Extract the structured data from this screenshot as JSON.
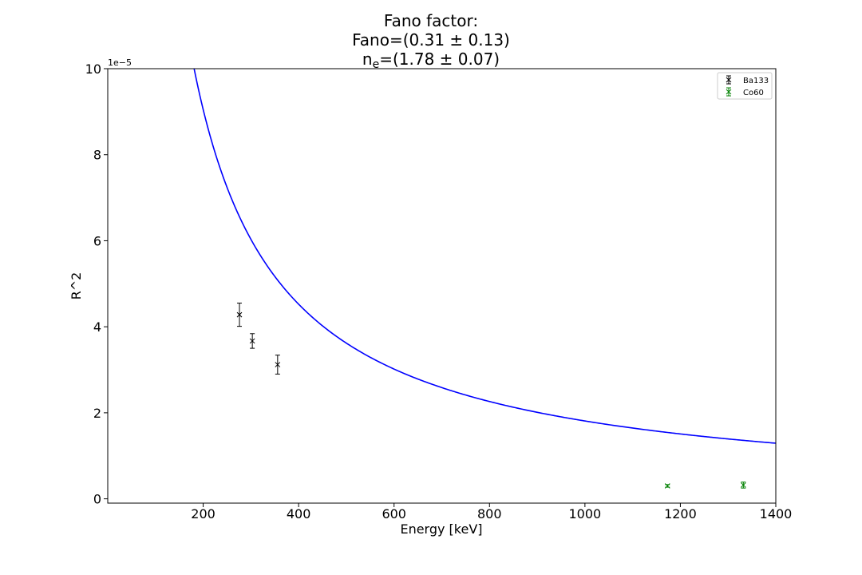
{
  "chart_data": {
    "type": "scatter",
    "title_lines": [
      "Fano factor:",
      "Fano=(0.31 ± 0.13)",
      "=(1.78 ± 0.07)"
    ],
    "title_ne_base": "n",
    "title_ne_sub": "e",
    "xlabel": "Energy [keV]",
    "ylabel": "R^2",
    "y_offset_label": "1e−5",
    "xlim": [
      0,
      1400
    ],
    "ylim": [
      -0.1,
      10
    ],
    "x_ticks": [
      200,
      400,
      600,
      800,
      1000,
      1200,
      1400
    ],
    "y_ticks": [
      0,
      2,
      4,
      6,
      8,
      10
    ],
    "grid": false,
    "legend_position": "top-right",
    "series": [
      {
        "name": "Ba133",
        "color": "#000000",
        "marker": "x",
        "x": [
          276,
          303,
          356
        ],
        "y": [
          4.28,
          3.67,
          3.12
        ],
        "yerr": [
          0.27,
          0.17,
          0.22
        ]
      },
      {
        "name": "Co60",
        "color": "#008000",
        "marker": "x",
        "x": [
          1173,
          1332
        ],
        "y": [
          0.3,
          0.32
        ],
        "yerr": [
          0.03,
          0.07
        ]
      }
    ],
    "fit_curve": {
      "color": "#0000ff",
      "x_start": 181,
      "x_end": 1400,
      "formula": "R^2 = a / E"
    }
  }
}
